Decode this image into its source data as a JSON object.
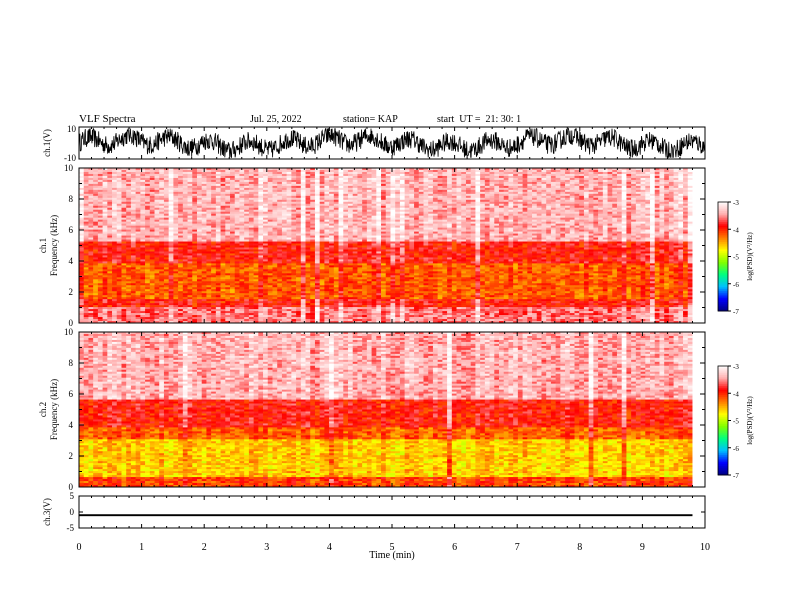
{
  "header": {
    "title": "VLF Spectra",
    "date": "Jul. 25, 2022",
    "station": "station= KAP",
    "start": "start  UT =  21: 30: 1"
  },
  "colors": {
    "frame": "#000000",
    "colormap": [
      "#000080",
      "#0000ff",
      "#00c0ff",
      "#00ff80",
      "#80ff00",
      "#ffff00",
      "#ff8000",
      "#ff0000",
      "#ffb0b0",
      "#ffffff"
    ]
  },
  "chart_data": [
    {
      "type": "line",
      "panel": "ch1_waveform",
      "ylabel": "ch.1(V)",
      "ylim": [
        -10,
        10
      ],
      "yticks": [
        "10",
        "-10"
      ],
      "xlim": [
        0,
        10
      ],
      "series": [
        {
          "description": "noisy waveform oscillating between roughly -9 and +9 V",
          "range": [
            -9,
            9
          ]
        }
      ]
    },
    {
      "type": "heatmap",
      "panel": "ch1_spectrogram",
      "ylabel": "ch.1",
      "ylabel2": "Frequency  (kHz)",
      "ylim": [
        0,
        10
      ],
      "yticks": [
        "0",
        "2",
        "4",
        "6",
        "8",
        "10"
      ],
      "xlim": [
        0,
        9.8
      ],
      "colorbar": {
        "label": "log(PSD)(V²/Hz)",
        "range": [
          -7,
          -3
        ],
        "ticks": [
          "-3",
          "-4",
          "-5",
          "-6",
          "-7"
        ]
      },
      "bands_khz": [
        {
          "from": 0,
          "to": 1.0,
          "log_psd": -3.6
        },
        {
          "from": 1.0,
          "to": 1.5,
          "log_psd": -3.9
        },
        {
          "from": 1.5,
          "to": 3.8,
          "log_psd": -4.2
        },
        {
          "from": 3.8,
          "to": 5.2,
          "log_psd": -3.9
        },
        {
          "from": 5.2,
          "to": 10,
          "log_psd": -3.4
        }
      ]
    },
    {
      "type": "heatmap",
      "panel": "ch2_spectrogram",
      "ylabel": "ch.2",
      "ylabel2": "Frequency  (kHz)",
      "ylim": [
        0,
        10
      ],
      "yticks": [
        "0",
        "2",
        "4",
        "6",
        "8",
        "10"
      ],
      "xlim": [
        0,
        9.8
      ],
      "colorbar": {
        "label": "log(PSD)(V²/Hz)",
        "range": [
          -7,
          -3
        ],
        "ticks": [
          "-3",
          "-4",
          "-5",
          "-6",
          "-7"
        ]
      },
      "bands_khz": [
        {
          "from": 0,
          "to": 0.7,
          "log_psd": -4.1
        },
        {
          "from": 0.7,
          "to": 3.1,
          "log_psd": -4.6
        },
        {
          "from": 3.1,
          "to": 3.8,
          "log_psd": -4.2
        },
        {
          "from": 3.8,
          "to": 5.6,
          "log_psd": -3.9
        },
        {
          "from": 5.6,
          "to": 10,
          "log_psd": -3.4
        }
      ]
    },
    {
      "type": "line",
      "panel": "ch3_waveform",
      "ylabel": "ch.3(V)",
      "ylim": [
        -5,
        5
      ],
      "yticks": [
        "5",
        "0",
        "-5"
      ],
      "xlim": [
        0,
        10
      ],
      "series": [
        {
          "description": "thin band around -1 V",
          "range": [
            -1.3,
            -0.7
          ]
        }
      ]
    },
    {
      "type": "axis",
      "panel": "time_axis",
      "xlabel": "Time  (min)",
      "xlim": [
        0,
        10
      ],
      "xticks": [
        "0",
        "1",
        "2",
        "3",
        "4",
        "5",
        "6",
        "7",
        "8",
        "9",
        "10"
      ]
    }
  ]
}
